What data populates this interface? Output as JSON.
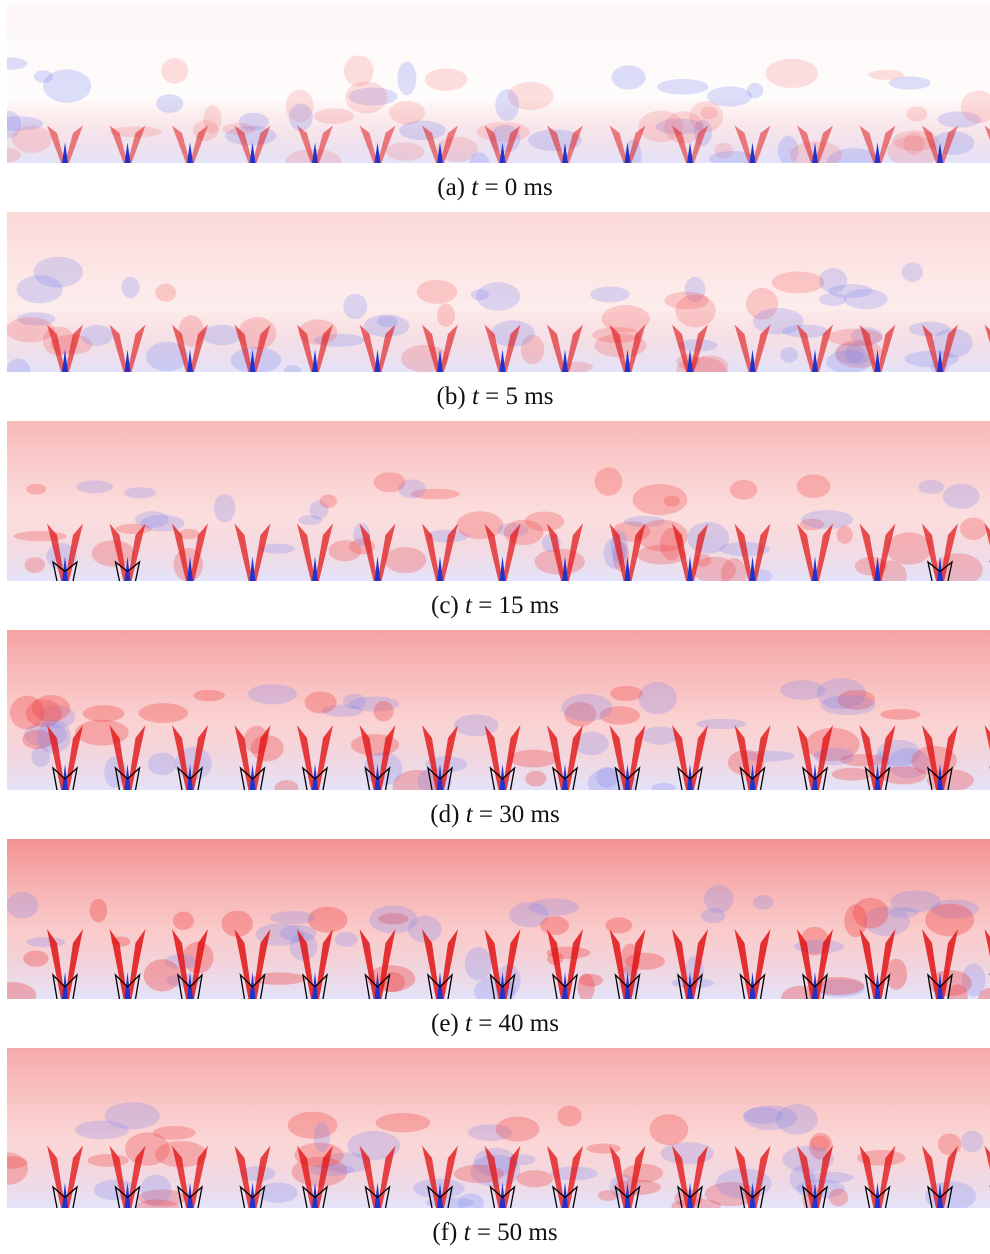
{
  "figure": {
    "panels": [
      {
        "label": "(a)",
        "variable": "t",
        "equation": "= 0 ms"
      },
      {
        "label": "(b)",
        "variable": "t",
        "equation": "= 5 ms"
      },
      {
        "label": "(c)",
        "variable": "t",
        "equation": "= 15 ms"
      },
      {
        "label": "(d)",
        "variable": "t",
        "equation": "= 30 ms"
      },
      {
        "label": "(e)",
        "variable": "t",
        "equation": "= 40 ms"
      },
      {
        "label": "(f)",
        "variable": "t",
        "equation": "= 50 ms"
      }
    ]
  }
}
